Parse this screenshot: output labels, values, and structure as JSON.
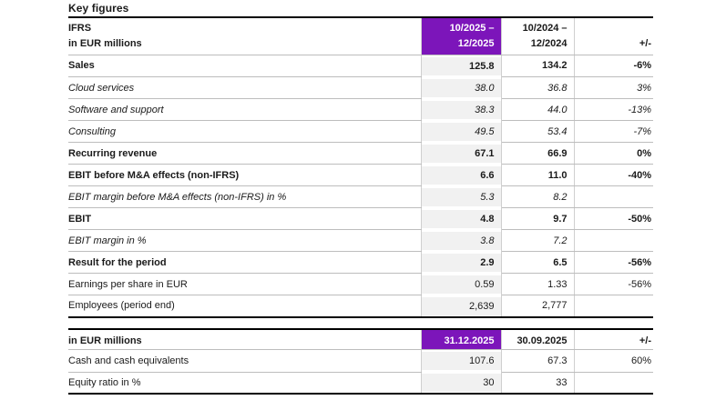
{
  "page": {
    "title": "Key figures"
  },
  "colors": {
    "accent_purple": "#7c15ba",
    "column_bg": "#f1f1f1",
    "rule_light": "#bdbdbd",
    "rule_heavy": "#000000"
  },
  "table1": {
    "header": {
      "label_line1": "IFRS",
      "label_line2": "in EUR millions",
      "col1_line1": "10/2025 –",
      "col1_line2": "12/2025",
      "col2_line1": "10/2024 –",
      "col2_line2": "12/2024",
      "col3": "+/-"
    },
    "rows": [
      {
        "label": "Sales",
        "v1": "125.8",
        "v2": "134.2",
        "delta": "-6%",
        "style": "bold"
      },
      {
        "label": "Cloud services",
        "v1": "38.0",
        "v2": "36.8",
        "delta": "3%",
        "style": "italic"
      },
      {
        "label": "Software and support",
        "v1": "38.3",
        "v2": "44.0",
        "delta": "-13%",
        "style": "italic"
      },
      {
        "label": "Consulting",
        "v1": "49.5",
        "v2": "53.4",
        "delta": "-7%",
        "style": "italic"
      },
      {
        "label": "Recurring revenue",
        "v1": "67.1",
        "v2": "66.9",
        "delta": "0%",
        "style": "bold"
      },
      {
        "label": "EBIT before M&A effects (non-IFRS)",
        "v1": "6.6",
        "v2": "11.0",
        "delta": "-40%",
        "style": "bold"
      },
      {
        "label": "EBIT margin before M&A effects (non-IFRS) in %",
        "v1": "5.3",
        "v2": "8.2",
        "delta": "",
        "style": "italic"
      },
      {
        "label": "EBIT",
        "v1": "4.8",
        "v2": "9.7",
        "delta": "-50%",
        "style": "bold"
      },
      {
        "label": "EBIT margin in %",
        "v1": "3.8",
        "v2": "7.2",
        "delta": "",
        "style": "italic"
      },
      {
        "label": "Result for the period",
        "v1": "2.9",
        "v2": "6.5",
        "delta": "-56%",
        "style": "bold"
      },
      {
        "label": "Earnings per share in EUR",
        "v1": "0.59",
        "v2": "1.33",
        "delta": "-56%",
        "style": "regular"
      },
      {
        "label": "Employees (period end)",
        "v1": "2,639",
        "v2": "2,777",
        "delta": "",
        "style": "regular"
      }
    ]
  },
  "table2": {
    "header": {
      "label": "in EUR millions",
      "col1": "31.12.2025",
      "col2": "30.09.2025",
      "col3": "+/-"
    },
    "rows": [
      {
        "label": "Cash and cash equivalents",
        "v1": "107.6",
        "v2": "67.3",
        "delta": "60%",
        "style": "regular"
      },
      {
        "label": "Equity ratio in %",
        "v1": "30",
        "v2": "33",
        "delta": "",
        "style": "regular"
      }
    ]
  }
}
